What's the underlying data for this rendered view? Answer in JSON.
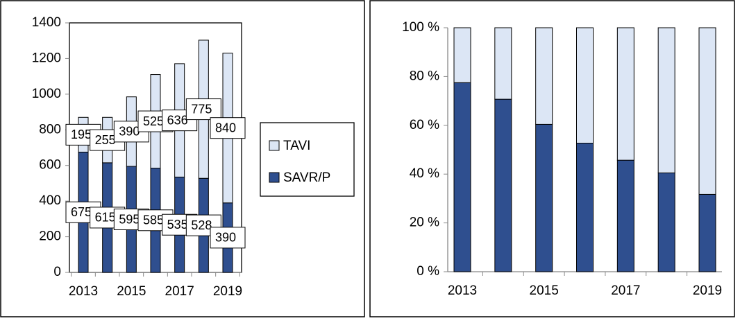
{
  "chart_data": [
    {
      "type": "stacked_bar",
      "categories": [
        "2013",
        null,
        "2015",
        null,
        "2017",
        null,
        "2019"
      ],
      "series": [
        {
          "name": "SAVR/P",
          "color": "#2f4f8f",
          "values": [
            675,
            615,
            595,
            585,
            535,
            528,
            390
          ]
        },
        {
          "name": "TAVI",
          "color": "#dce6f5",
          "values": [
            195,
            255,
            390,
            525,
            636,
            775,
            840
          ],
          "label_colors": [
            "#000",
            "#000",
            "#000",
            "#000",
            "#000",
            "#000",
            "#e8141c"
          ]
        }
      ],
      "value_labels": true,
      "ylim": [
        0,
        1400
      ],
      "yticks": [
        0,
        200,
        400,
        600,
        800,
        1000,
        1200,
        1400
      ],
      "legend": "right"
    },
    {
      "type": "stacked_bar",
      "categories": [
        "2013",
        null,
        "2015",
        null,
        "2017",
        null,
        "2019"
      ],
      "series": [
        {
          "color": "#2f4f8f",
          "values": [
            77.5,
            70.7,
            60.4,
            52.7,
            45.7,
            40.5,
            31.7
          ]
        },
        {
          "color": "#dce6f5",
          "values": [
            22.5,
            29.3,
            39.6,
            47.3,
            54.3,
            59.5,
            68.3
          ]
        }
      ],
      "ylim": [
        0,
        100
      ],
      "yticks": [
        {
          "value": 0,
          "label": "0 %"
        },
        {
          "value": 20,
          "label": "20 %"
        },
        {
          "value": 40,
          "label": "40 %"
        },
        {
          "value": 60,
          "label": "60 %"
        },
        {
          "value": 80,
          "label": "80 %"
        },
        {
          "value": 100,
          "label": "100 %"
        }
      ]
    }
  ]
}
